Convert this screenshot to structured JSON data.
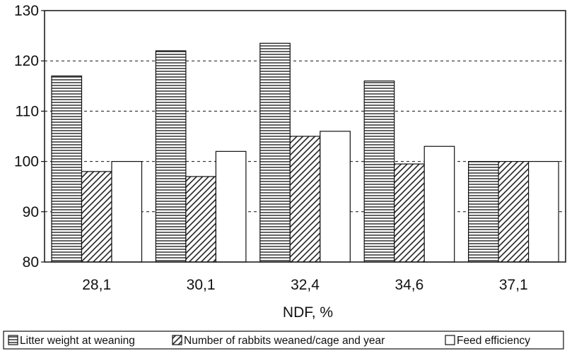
{
  "chart_data": {
    "type": "bar",
    "categories": [
      "28,1",
      "30,1",
      "32,4",
      "34,6",
      "37,1"
    ],
    "series": [
      {
        "name": "Litter weight at weaning",
        "values": [
          117,
          122,
          123.5,
          116,
          100
        ]
      },
      {
        "name": "Number of rabbits weaned/cage and year",
        "values": [
          98,
          97,
          105,
          99.5,
          100
        ]
      },
      {
        "name": "Feed efficiency",
        "values": [
          100,
          102,
          106,
          103,
          100
        ]
      }
    ],
    "title": "",
    "xlabel": "NDF, %",
    "ylabel": "",
    "ylim": [
      80,
      130
    ],
    "yticks": [
      80,
      90,
      100,
      110,
      120,
      130
    ],
    "grid": "horizontal dashed",
    "legend": "bottom"
  }
}
